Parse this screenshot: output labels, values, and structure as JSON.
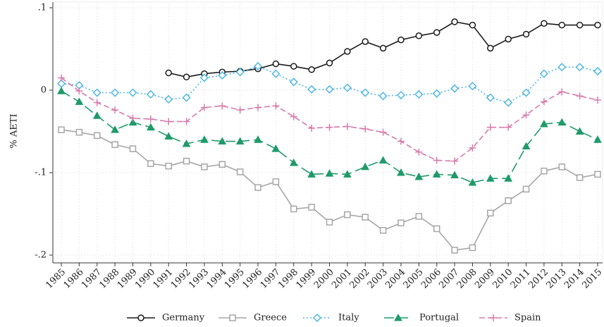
{
  "chart_data": {
    "type": "line",
    "ylabel": "% AETI",
    "x": [
      1985,
      1986,
      1987,
      1988,
      1989,
      1990,
      1991,
      1992,
      1993,
      1994,
      1995,
      1996,
      1997,
      1998,
      1999,
      2000,
      2001,
      2002,
      2003,
      2004,
      2005,
      2006,
      2007,
      2008,
      2009,
      2010,
      2011,
      2012,
      2013,
      2014,
      2015
    ],
    "xlim": [
      1985,
      2015
    ],
    "ylim": [
      -0.2,
      0.1
    ],
    "yticks": [
      {
        "value": -0.2,
        "label": "-.2"
      },
      {
        "value": -0.1,
        "label": "-.1"
      },
      0,
      {
        "value": 0.1,
        "label": ".1"
      }
    ],
    "grid": true,
    "legend": "bottom",
    "series": [
      {
        "name": "Germany",
        "color": "#1a1a1a",
        "dash": "solid",
        "marker": "circle",
        "values": [
          null,
          null,
          null,
          null,
          null,
          null,
          0.021,
          0.016,
          0.02,
          0.022,
          0.023,
          0.026,
          0.032,
          0.029,
          0.025,
          0.033,
          0.047,
          0.059,
          0.051,
          0.061,
          0.066,
          0.07,
          0.083,
          0.079,
          0.051,
          0.062,
          0.068,
          0.081,
          0.079,
          0.079,
          0.079
        ]
      },
      {
        "name": "Greece",
        "color": "#a6a6a6",
        "dash": "solid",
        "marker": "square",
        "values": [
          -0.048,
          -0.051,
          -0.055,
          -0.066,
          -0.071,
          -0.089,
          -0.092,
          -0.086,
          -0.093,
          -0.09,
          -0.099,
          -0.118,
          -0.111,
          -0.144,
          -0.142,
          -0.16,
          -0.151,
          -0.154,
          -0.17,
          -0.161,
          -0.153,
          -0.168,
          -0.194,
          -0.191,
          -0.149,
          -0.134,
          -0.12,
          -0.098,
          -0.093,
          -0.106,
          -0.102
        ]
      },
      {
        "name": "Italy",
        "color": "#4fb6e6",
        "dash": "dot",
        "marker": "diamond",
        "values": [
          0.008,
          0.006,
          -0.003,
          -0.003,
          -0.003,
          -0.005,
          -0.011,
          -0.009,
          0.015,
          0.018,
          0.022,
          0.029,
          0.02,
          0.01,
          0.001,
          0.001,
          0.003,
          -0.003,
          -0.007,
          -0.006,
          -0.005,
          -0.004,
          0.002,
          0.005,
          -0.009,
          -0.015,
          -0.003,
          0.02,
          0.028,
          0.028,
          0.023
        ]
      },
      {
        "name": "Portugal",
        "color": "#1f9a6a",
        "dash": "longdash",
        "marker": "triangle",
        "values": [
          -0.001,
          -0.014,
          -0.031,
          -0.048,
          -0.039,
          -0.045,
          -0.056,
          -0.065,
          -0.06,
          -0.062,
          -0.062,
          -0.06,
          -0.071,
          -0.088,
          -0.102,
          -0.101,
          -0.102,
          -0.093,
          -0.085,
          -0.1,
          -0.105,
          -0.102,
          -0.103,
          -0.112,
          -0.107,
          -0.107,
          -0.068,
          -0.041,
          -0.039,
          -0.05,
          -0.06
        ]
      },
      {
        "name": "Spain",
        "color": "#d67bab",
        "dash": "dash",
        "marker": "plus",
        "values": [
          0.015,
          -0.001,
          -0.015,
          -0.024,
          -0.034,
          -0.035,
          -0.038,
          -0.038,
          -0.021,
          -0.019,
          -0.024,
          -0.021,
          -0.019,
          -0.032,
          -0.046,
          -0.045,
          -0.044,
          -0.047,
          -0.051,
          -0.062,
          -0.075,
          -0.085,
          -0.086,
          -0.07,
          -0.045,
          -0.045,
          -0.03,
          -0.014,
          -0.002,
          -0.007,
          -0.012
        ]
      }
    ]
  }
}
